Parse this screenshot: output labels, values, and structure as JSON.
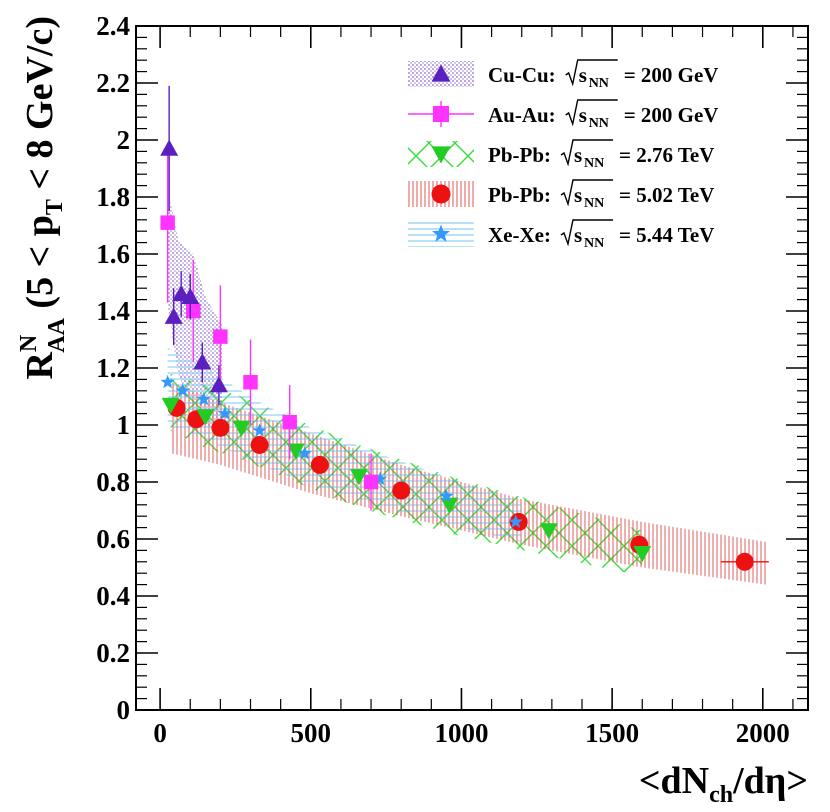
{
  "chart_data": {
    "type": "scatter",
    "xlabel": {
      "prefix": "<dN",
      "sub": "ch",
      "suffix": "/dη>"
    },
    "ylabel": {
      "main": "R",
      "sup": "N",
      "sub": "AA",
      "mid": " (5 < p",
      "sub2": "T",
      "end": " < 8 GeV/c)"
    },
    "xlim": [
      -80,
      2150
    ],
    "ylim": [
      0,
      2.4
    ],
    "xticks": [
      0,
      500,
      1000,
      1500,
      2000
    ],
    "yticks": [
      0,
      0.2,
      0.4,
      0.6,
      0.8,
      1,
      1.2,
      1.4,
      1.6,
      1.8,
      2,
      2.2,
      2.4
    ],
    "legend_position": "top-right",
    "series": [
      {
        "name": "Cu-Cu",
        "energy_label": "= 200 GeV",
        "color": "#5b1fc0",
        "band_color": "#6a3ab8",
        "marker": "triangle-up",
        "band_style": "dots",
        "points": [
          {
            "x": 30,
            "y": 1.97,
            "err": 0.22
          },
          {
            "x": 45,
            "y": 1.38,
            "err": 0.1
          },
          {
            "x": 70,
            "y": 1.46,
            "err": 0.08
          },
          {
            "x": 100,
            "y": 1.45,
            "err": 0.08
          },
          {
            "x": 140,
            "y": 1.22,
            "err": 0.07
          },
          {
            "x": 195,
            "y": 1.14,
            "err": 0.07
          }
        ],
        "band": [
          {
            "x": 28,
            "lo": 1.4,
            "hi": 1.82
          },
          {
            "x": 60,
            "lo": 1.18,
            "hi": 1.65
          },
          {
            "x": 110,
            "lo": 1.05,
            "hi": 1.6
          },
          {
            "x": 150,
            "lo": 1.0,
            "hi": 1.45
          },
          {
            "x": 205,
            "lo": 0.96,
            "hi": 1.35
          }
        ]
      },
      {
        "name": "Au-Au",
        "energy_label": "= 200 GeV",
        "color": "#ff33ff",
        "marker": "square",
        "points": [
          {
            "x": 25,
            "y": 1.71,
            "err": 0.28
          },
          {
            "x": 110,
            "y": 1.4,
            "err": 0.18
          },
          {
            "x": 200,
            "y": 1.31,
            "err": 0.18
          },
          {
            "x": 300,
            "y": 1.15,
            "err": 0.15
          },
          {
            "x": 430,
            "y": 1.01,
            "err": 0.13
          },
          {
            "x": 700,
            "y": 0.8,
            "err": 0.1
          }
        ]
      },
      {
        "name": "Pb-Pb",
        "energy_label": "= 2.76 TeV",
        "color": "#22cc22",
        "band_color": "#33dd33",
        "marker": "triangle-down",
        "band_style": "cross",
        "points": [
          {
            "x": 35,
            "y": 1.07
          },
          {
            "x": 150,
            "y": 1.03
          },
          {
            "x": 270,
            "y": 0.99
          },
          {
            "x": 450,
            "y": 0.91
          },
          {
            "x": 660,
            "y": 0.82
          },
          {
            "x": 960,
            "y": 0.72
          },
          {
            "x": 1290,
            "y": 0.63
          },
          {
            "x": 1600,
            "y": 0.55
          }
        ],
        "band": [
          {
            "x": 35,
            "lo": 0.98,
            "hi": 1.18
          },
          {
            "x": 150,
            "lo": 0.92,
            "hi": 1.14
          },
          {
            "x": 270,
            "lo": 0.88,
            "hi": 1.1
          },
          {
            "x": 450,
            "lo": 0.8,
            "hi": 1.02
          },
          {
            "x": 660,
            "lo": 0.71,
            "hi": 0.93
          },
          {
            "x": 960,
            "lo": 0.62,
            "hi": 0.82
          },
          {
            "x": 1290,
            "lo": 0.54,
            "hi": 0.72
          },
          {
            "x": 1600,
            "lo": 0.47,
            "hi": 0.63
          }
        ]
      },
      {
        "name": "Pb-Pb",
        "energy_label": "= 5.02 TeV",
        "color": "#ee1111",
        "band_color": "#dd4444",
        "marker": "circle",
        "band_style": "vlines",
        "points": [
          {
            "x": 55,
            "y": 1.06
          },
          {
            "x": 120,
            "y": 1.02
          },
          {
            "x": 200,
            "y": 0.99
          },
          {
            "x": 330,
            "y": 0.93
          },
          {
            "x": 530,
            "y": 0.86
          },
          {
            "x": 800,
            "y": 0.77
          },
          {
            "x": 1190,
            "y": 0.66
          },
          {
            "x": 1590,
            "y": 0.58
          },
          {
            "x": 1940,
            "y": 0.52,
            "xerr": 80
          }
        ],
        "band": [
          {
            "x": 40,
            "lo": 0.9,
            "hi": 1.15
          },
          {
            "x": 200,
            "lo": 0.86,
            "hi": 1.08
          },
          {
            "x": 500,
            "lo": 0.76,
            "hi": 0.97
          },
          {
            "x": 800,
            "lo": 0.68,
            "hi": 0.86
          },
          {
            "x": 1200,
            "lo": 0.58,
            "hi": 0.74
          },
          {
            "x": 1600,
            "lo": 0.5,
            "hi": 0.66
          },
          {
            "x": 2010,
            "lo": 0.44,
            "hi": 0.59
          }
        ]
      },
      {
        "name": "Xe-Xe",
        "energy_label": "= 5.44 TeV",
        "color": "#3399ff",
        "band_color": "#66bbee",
        "marker": "star",
        "band_style": "hlines",
        "points": [
          {
            "x": 25,
            "y": 1.15
          },
          {
            "x": 75,
            "y": 1.12
          },
          {
            "x": 145,
            "y": 1.09
          },
          {
            "x": 215,
            "y": 1.04
          },
          {
            "x": 330,
            "y": 0.98
          },
          {
            "x": 480,
            "y": 0.9
          },
          {
            "x": 730,
            "y": 0.81
          },
          {
            "x": 950,
            "y": 0.75
          },
          {
            "x": 1180,
            "y": 0.66
          }
        ],
        "band": [
          {
            "x": 25,
            "lo": 1.0,
            "hi": 1.27
          },
          {
            "x": 150,
            "lo": 0.95,
            "hi": 1.2
          },
          {
            "x": 330,
            "lo": 0.86,
            "hi": 1.08
          },
          {
            "x": 500,
            "lo": 0.79,
            "hi": 0.99
          },
          {
            "x": 750,
            "lo": 0.71,
            "hi": 0.89
          },
          {
            "x": 1000,
            "lo": 0.64,
            "hi": 0.8
          },
          {
            "x": 1200,
            "lo": 0.59,
            "hi": 0.73
          }
        ]
      }
    ]
  }
}
